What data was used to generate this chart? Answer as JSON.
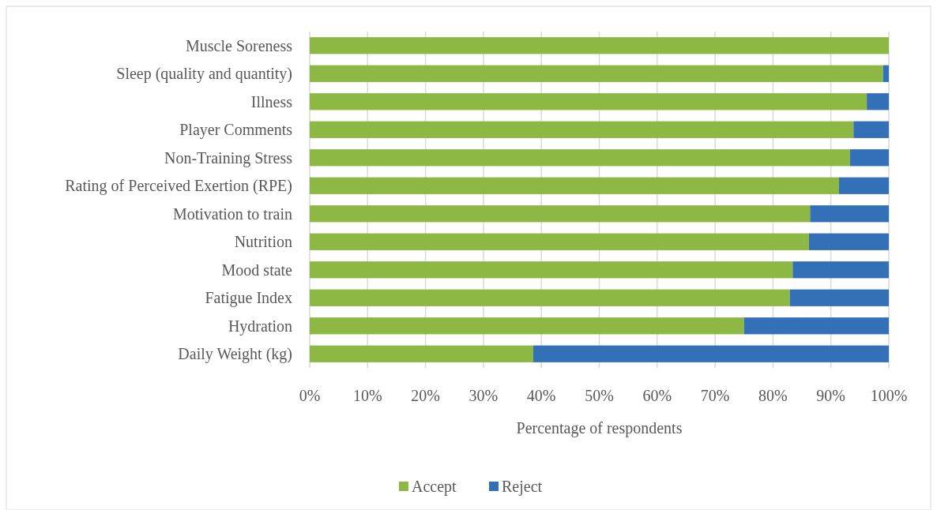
{
  "chart_data": {
    "type": "bar",
    "orientation": "horizontal",
    "stacked": true,
    "categories": [
      "Muscle Soreness",
      "Sleep (quality and quantity)",
      "Illness",
      "Player Comments",
      "Non-Training Stress",
      "Rating of Perceived Exertion (RPE)",
      "Motivation to train",
      "Nutrition",
      "Mood state",
      "Fatigue Index",
      "Hydration",
      "Daily Weight (kg)"
    ],
    "series": [
      {
        "name": "Accept",
        "color": "#8db843",
        "values": [
          100,
          99,
          96.2,
          93.9,
          93.3,
          91.4,
          86.4,
          86.2,
          83.4,
          82.9,
          75,
          38.6
        ]
      },
      {
        "name": "Reject",
        "color": "#3470b8",
        "values": [
          0,
          1,
          3.8,
          6.1,
          6.7,
          8.6,
          13.6,
          13.8,
          16.6,
          17.1,
          25,
          61.4
        ]
      }
    ],
    "xlim": [
      0,
      100
    ],
    "xticks": [
      {
        "value": 0,
        "label": "0%"
      },
      {
        "value": 10,
        "label": "10%"
      },
      {
        "value": 20,
        "label": "20%"
      },
      {
        "value": 30,
        "label": "30%"
      },
      {
        "value": 40,
        "label": "40%"
      },
      {
        "value": 50,
        "label": "50%"
      },
      {
        "value": 60,
        "label": "60%"
      },
      {
        "value": 70,
        "label": "70%"
      },
      {
        "value": 80,
        "label": "80%"
      },
      {
        "value": 90,
        "label": "90%"
      },
      {
        "value": 100,
        "label": "100%"
      }
    ],
    "xlabel": "Percentage of respondents",
    "grid": "x",
    "legend": "bottom"
  }
}
